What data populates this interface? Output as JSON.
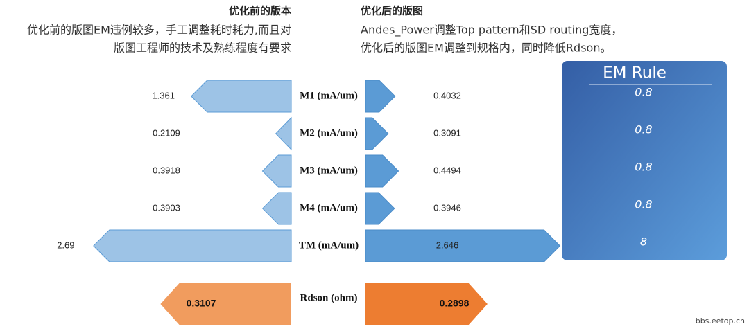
{
  "header": {
    "before_title": "优化前的版本",
    "before_text": [
      "优化前的版图EM违例较多，手工调整耗时耗力,而且对",
      "版图工程师的技术及熟练程度有要求"
    ],
    "after_title": "优化后的版图",
    "after_text": [
      "Andes_Power调整Top pattern和SD routing宽度，",
      "优化后的版图EM调整到规格内，同时降低Rdson。"
    ]
  },
  "chart_data": [
    {
      "type": "butterfly",
      "categories": [
        "M1 (mA/um)",
        "M2 (mA/um)",
        "M3 (mA/um)",
        "M4 (mA/um)",
        "TM (mA/um)"
      ],
      "series": [
        {
          "color": "#9dc3e6",
          "values": [
            1.361,
            0.2109,
            0.3918,
            0.3903,
            2.69
          ]
        },
        {
          "color": "#5b9bd5",
          "values": [
            0.4032,
            0.3091,
            0.4494,
            0.3946,
            2.646
          ]
        }
      ]
    },
    {
      "type": "butterfly",
      "categories": [
        "Rdson (ohm)"
      ],
      "series": [
        {
          "color": "#f19c5e",
          "values": [
            0.3107
          ]
        },
        {
          "color": "#ed7d31",
          "values": [
            0.2898
          ]
        }
      ]
    }
  ],
  "em_rule": {
    "title": "EM Rule",
    "values": [
      0.8,
      0.8,
      0.8,
      0.8,
      8
    ]
  },
  "watermark": "bbs.eetop.cn"
}
